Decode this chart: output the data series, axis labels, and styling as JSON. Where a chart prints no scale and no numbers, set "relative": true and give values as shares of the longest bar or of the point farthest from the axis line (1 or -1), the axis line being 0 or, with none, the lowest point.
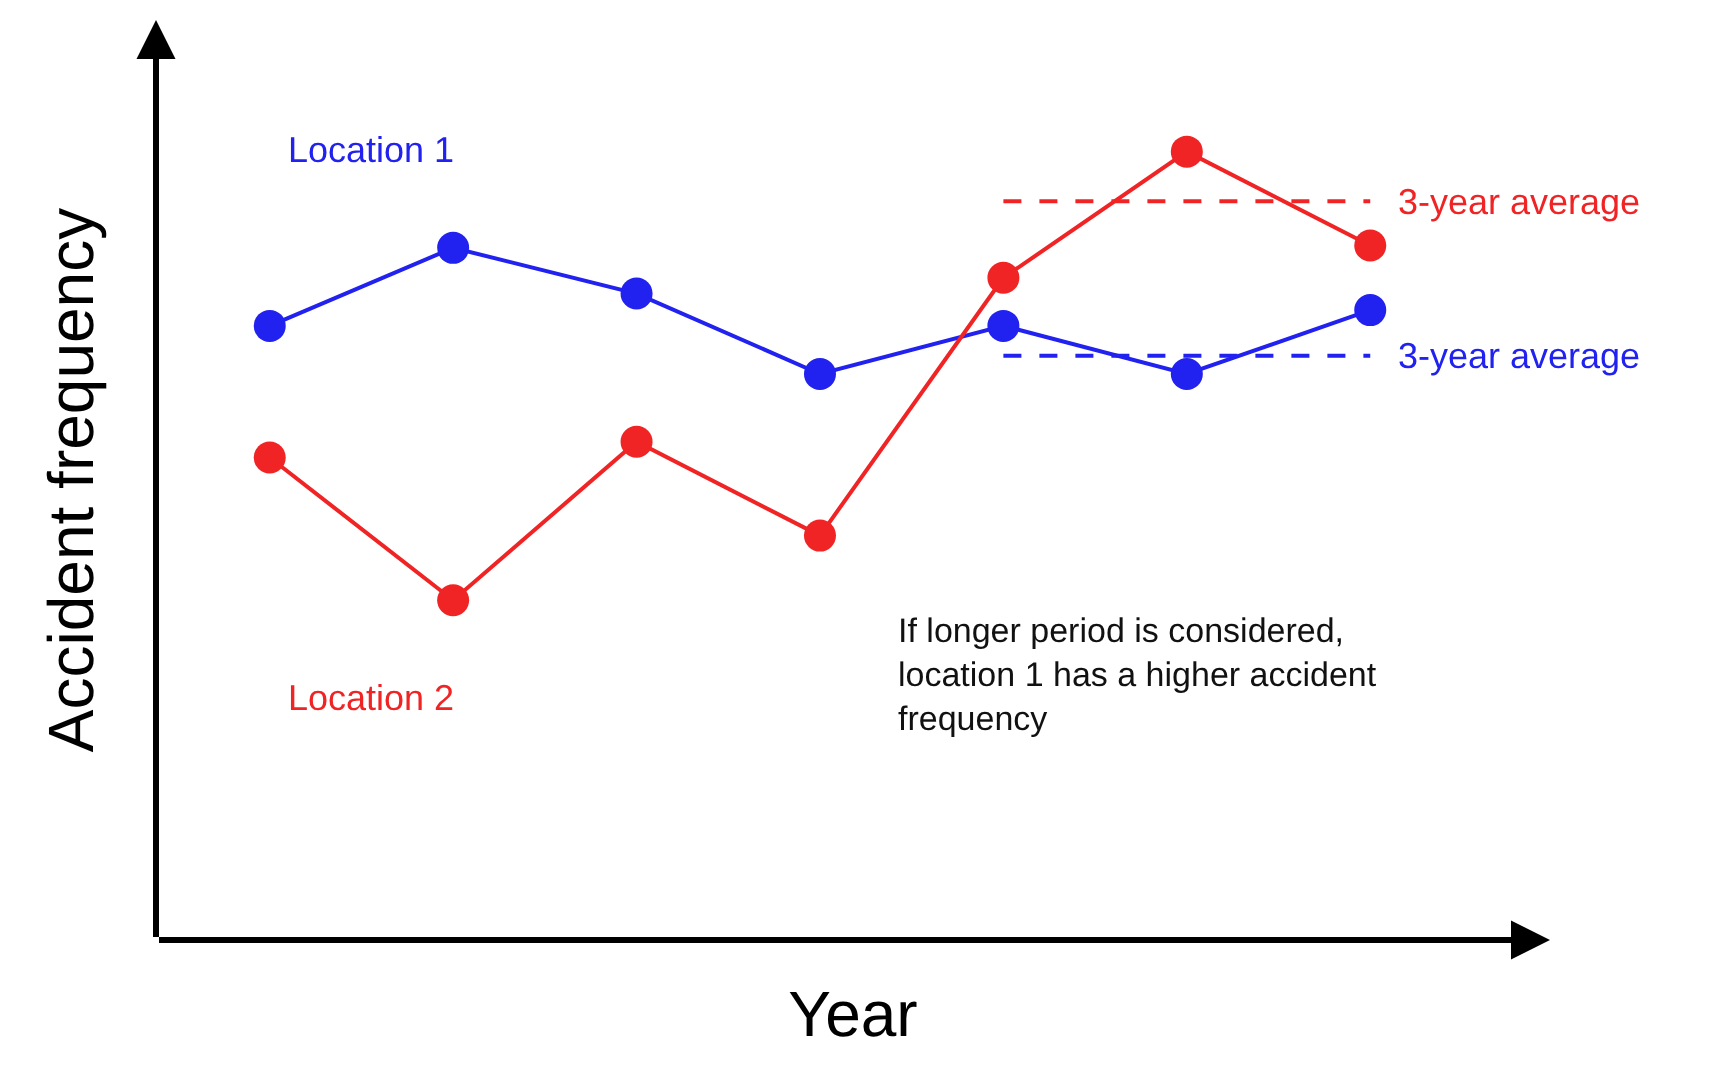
{
  "chart_data": {
    "type": "line",
    "relative": true,
    "xlabel": "Year",
    "ylabel": "Accident frequency",
    "categories": [
      null,
      null,
      null,
      null,
      null,
      null,
      null
    ],
    "marker": "circle",
    "line_style": "solid",
    "grid": false,
    "legend": false,
    "series": [
      {
        "name": "Location 1",
        "color": "#2121f0",
        "values": [
          0.779,
          0.878,
          0.82,
          0.718,
          0.779,
          0.718,
          0.799
        ]
      },
      {
        "name": "Location 2",
        "color": "#f02424",
        "values": [
          0.612,
          0.431,
          0.632,
          0.513,
          0.84,
          1.0,
          0.881
        ]
      },
      {
        "name": "3-year average",
        "color": "#f02424",
        "marker": "none",
        "line_style": "dashed",
        "values": [
          null,
          null,
          null,
          null,
          0.937,
          0.937,
          0.937
        ]
      },
      {
        "name": "3-year average",
        "color": "#2121f0",
        "marker": "none",
        "line_style": "dashed",
        "values": [
          null,
          null,
          null,
          null,
          0.741,
          0.741,
          0.741
        ]
      }
    ],
    "annotations": [
      "If longer period is considered,\nlocation 1 has a higher accident\nfrequency"
    ]
  }
}
